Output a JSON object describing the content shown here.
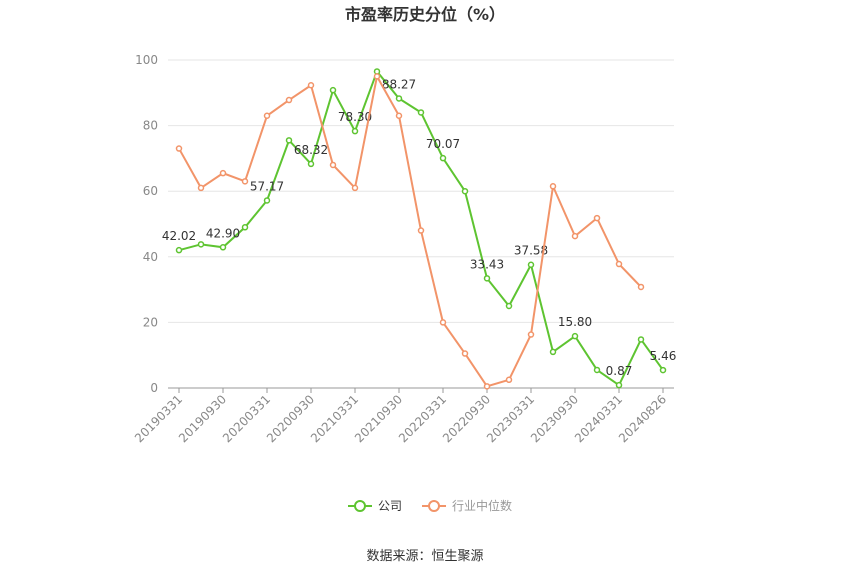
{
  "chart_data": {
    "type": "line",
    "title": "市盈率历史分位（%）",
    "categories": [
      "20190331",
      null,
      "20190930",
      null,
      "20200331",
      null,
      "20200930",
      null,
      "20210331",
      null,
      "20210930",
      null,
      "20220331",
      null,
      "20220930",
      null,
      "20230331",
      null,
      "20230930",
      null,
      "20240331",
      null,
      "20240826"
    ],
    "series": [
      {
        "name": "公司",
        "color": "#5ec431",
        "values": [
          42.02,
          43.8,
          42.9,
          49,
          57.17,
          75.5,
          68.32,
          90.8,
          78.3,
          96.5,
          88.27,
          84,
          70.07,
          60,
          33.43,
          25,
          37.58,
          11,
          15.8,
          5.5,
          0.87,
          14.8,
          5.46
        ],
        "value_labels": [
          "42.02",
          null,
          "42.90",
          null,
          "57.17",
          null,
          "68.32",
          null,
          "78.30",
          null,
          "88.27",
          null,
          "70.07",
          null,
          "33.43",
          null,
          "37.58",
          null,
          "15.80",
          null,
          "0.87",
          null,
          "5.46"
        ]
      },
      {
        "name": "行业中位数",
        "color": "#f29469",
        "values": [
          73,
          61,
          65.5,
          63,
          83,
          87.8,
          92.3,
          68,
          61,
          95,
          83,
          48,
          20,
          10.5,
          0.5,
          2.5,
          16.3,
          61.5,
          46.3,
          51.8,
          37.8,
          30.8,
          null
        ]
      }
    ],
    "ylim": [
      0,
      100
    ],
    "yticks": [
      0,
      20,
      40,
      60,
      80,
      100
    ],
    "grid": true,
    "source": "数据来源：恒生聚源"
  }
}
